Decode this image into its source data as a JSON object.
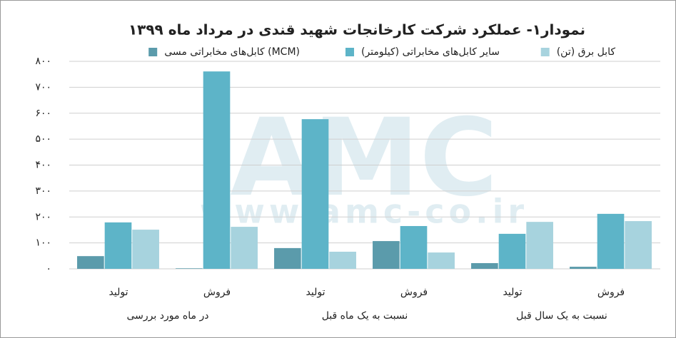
{
  "chart_data": {
    "type": "bar",
    "title": "نمودار۱- عملکرد شرکت کارخانجات شهید قندی در مرداد ماه ۱۳۹۹",
    "categories": [
      "تولید",
      "فروش",
      "تولید",
      "فروش",
      "تولید",
      "فروش"
    ],
    "category_groups": [
      "در ماه مورد بررسی",
      "نسبت به یک ماه قبل",
      "نسبت به یک سال قبل"
    ],
    "series": [
      {
        "name": "کابل‌های مخابراتی مسی (MCM)",
        "color": "#5b9bab",
        "values": [
          49,
          2,
          80,
          107,
          22,
          8
        ]
      },
      {
        "name": "سایر کابل‌های مخابراتی (کیلومتر)",
        "color": "#5db4c8",
        "values": [
          179,
          761,
          577,
          165,
          135,
          212
        ]
      },
      {
        "name": "کابل برق (تن)",
        "color": "#a7d3de",
        "values": [
          151,
          162,
          66,
          63,
          181,
          184
        ]
      }
    ],
    "ylim": [
      0,
      800
    ],
    "yticks": [
      {
        "value": 0,
        "label": "۰"
      },
      {
        "value": 100,
        "label": "۱۰۰"
      },
      {
        "value": 200,
        "label": "۲۰۰"
      },
      {
        "value": 300,
        "label": "۳۰۰"
      },
      {
        "value": 400,
        "label": "۴۰۰"
      },
      {
        "value": 500,
        "label": "۵۰۰"
      },
      {
        "value": 600,
        "label": "۶۰۰"
      },
      {
        "value": 700,
        "label": "۷۰۰"
      },
      {
        "value": 800,
        "label": "۸۰۰"
      }
    ],
    "grid": true,
    "watermark": {
      "logo": "AMC",
      "url": "www.amc-co.ir"
    }
  }
}
